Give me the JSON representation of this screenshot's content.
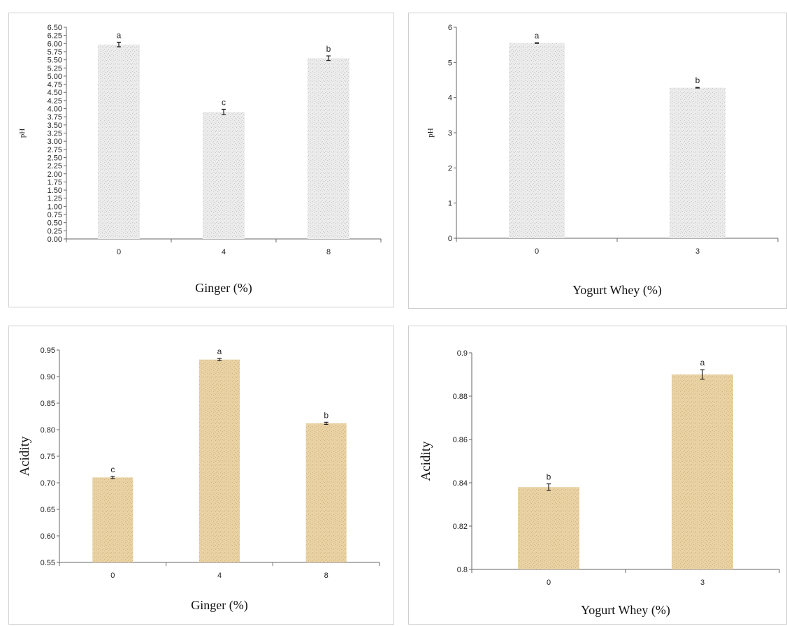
{
  "chart_data": [
    {
      "type": "bar",
      "categories": [
        "0",
        "4",
        "8"
      ],
      "values": [
        5.97,
        3.9,
        5.55
      ],
      "errors": [
        0.07,
        0.08,
        0.07
      ],
      "significance": [
        "a",
        "c",
        "b"
      ],
      "xlabel": "Ginger (%)",
      "ylabel": "pH",
      "ylim": [
        0,
        6.5
      ],
      "yticks": [
        "0.00",
        "0.25",
        "0.50",
        "0.75",
        "1.00",
        "1.25",
        "1.50",
        "1.75",
        "2.00",
        "2.25",
        "2.50",
        "2.75",
        "3.00",
        "3.25",
        "3.50",
        "3.75",
        "4.00",
        "4.25",
        "4.50",
        "4.75",
        "5.00",
        "5.25",
        "5.50",
        "5.75",
        "6.00",
        "6.25",
        "6.50"
      ],
      "bar_color": "#ececec",
      "grid": false
    },
    {
      "type": "bar",
      "categories": [
        "0",
        "3"
      ],
      "values": [
        5.55,
        4.28
      ],
      "errors": [
        0.01,
        0.01
      ],
      "significance": [
        "a",
        "b"
      ],
      "xlabel": "Yogurt Whey (%)",
      "ylabel": "pH",
      "ylim": [
        0,
        6
      ],
      "yticks": [
        "0",
        "1",
        "2",
        "3",
        "4",
        "5",
        "6"
      ],
      "bar_color": "#ececec",
      "grid": false
    },
    {
      "type": "bar",
      "categories": [
        "0",
        "4",
        "8"
      ],
      "values": [
        0.71,
        0.932,
        0.812
      ],
      "errors": [
        0.002,
        0.002,
        0.002
      ],
      "significance": [
        "c",
        "a",
        "b"
      ],
      "xlabel": "Ginger (%)",
      "ylabel": "Acidity",
      "ylim": [
        0.55,
        0.95
      ],
      "yticks": [
        "0.55",
        "0.60",
        "0.65",
        "0.70",
        "0.75",
        "0.80",
        "0.85",
        "0.90",
        "0.95"
      ],
      "bar_color": "#e9d2a4",
      "grid": false
    },
    {
      "type": "bar",
      "categories": [
        "0",
        "3"
      ],
      "values": [
        0.838,
        0.89
      ],
      "errors": [
        0.0015,
        0.0022
      ],
      "significance": [
        "b",
        "a"
      ],
      "xlabel": "Yogurt Whey (%)",
      "ylabel": "Acidity",
      "ylim": [
        0.8,
        0.9
      ],
      "yticks": [
        "0.8",
        "0.82",
        "0.84",
        "0.86",
        "0.88",
        "0.9"
      ],
      "bar_color": "#e9d2a4",
      "grid": false
    }
  ]
}
